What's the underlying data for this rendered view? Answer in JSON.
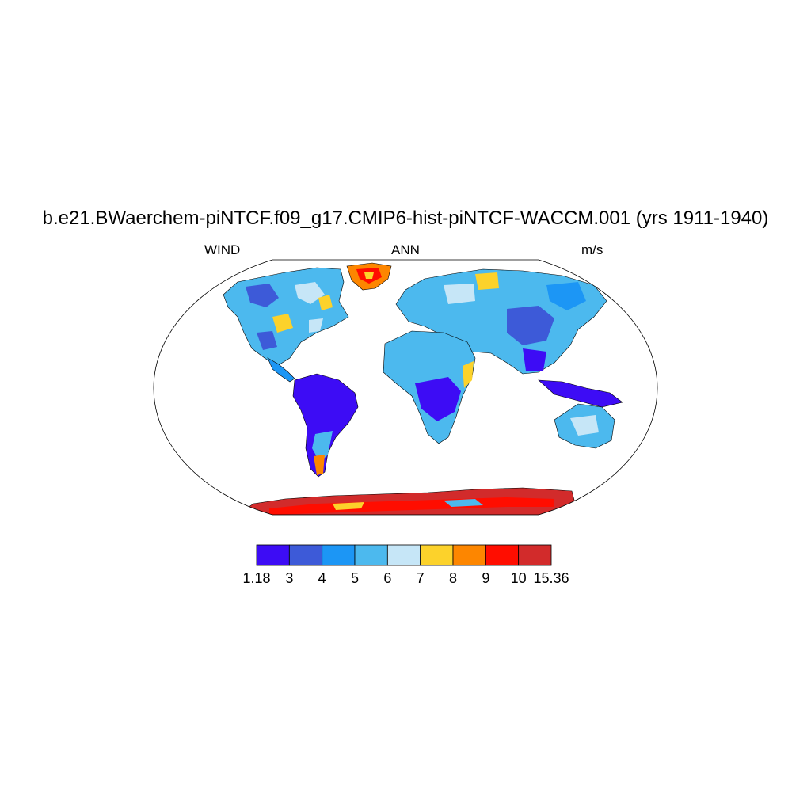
{
  "title": "b.e21.BWaerchem-piNTCF.f09_g17.CMIP6-hist-piNTCF-WACCM.001 (yrs 1911-1940)",
  "subtitle_left": "WIND",
  "subtitle_center": "ANN",
  "subtitle_right": "m/s",
  "colorbar": {
    "labels": [
      "1.18",
      "3",
      "4",
      "5",
      "6",
      "7",
      "8",
      "9",
      "10",
      "15.36"
    ],
    "colors": [
      "#3d0cf5",
      "#3d5ad8",
      "#1c96f5",
      "#4cb9ee",
      "#c6e6f7",
      "#fcd22b",
      "#fd8600",
      "#ff0d00",
      "#d22b2b"
    ]
  }
}
